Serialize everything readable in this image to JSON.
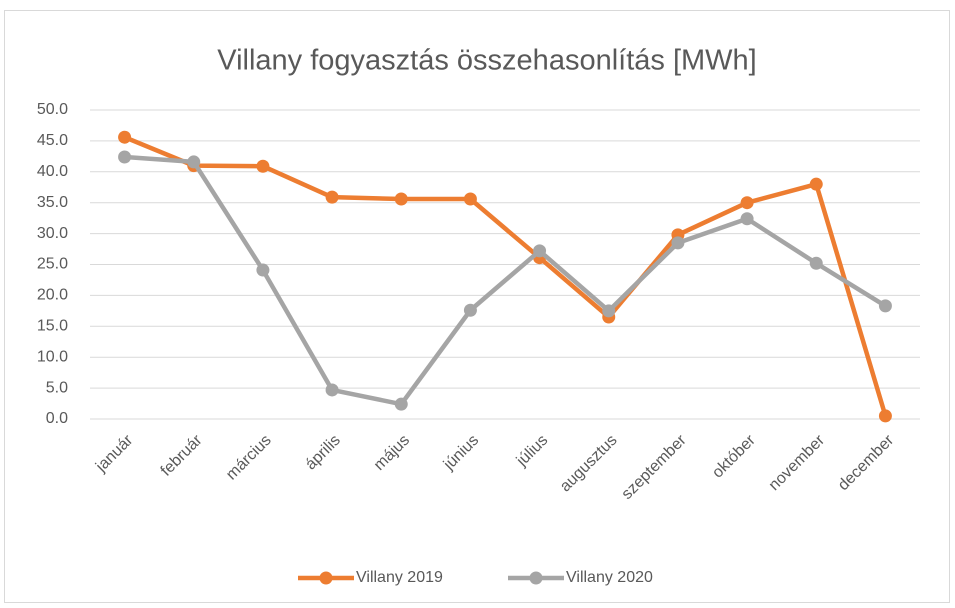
{
  "chart_data": {
    "type": "line",
    "title": "Villany fogyasztás összehasonlítás [MWh]",
    "categories": [
      "január",
      "február",
      "március",
      "április",
      "május",
      "június",
      "július",
      "augusztus",
      "szeptember",
      "október",
      "november",
      "december"
    ],
    "series": [
      {
        "name": "Villany 2019",
        "color": "#ed7d31",
        "values": [
          45.6,
          41.0,
          40.9,
          35.9,
          35.6,
          35.6,
          26.1,
          16.5,
          29.8,
          35.0,
          38.0,
          0.5
        ]
      },
      {
        "name": "Villany 2020",
        "color": "#a5a5a5",
        "values": [
          42.4,
          41.6,
          24.1,
          4.7,
          2.4,
          17.6,
          27.2,
          17.5,
          28.5,
          32.4,
          25.2,
          18.3
        ]
      }
    ],
    "ylim": [
      0,
      50
    ],
    "yticks": [
      {
        "value": 0,
        "label": "0.0"
      },
      {
        "value": 5,
        "label": "5.0"
      },
      {
        "value": 10,
        "label": "10.0"
      },
      {
        "value": 15,
        "label": "15.0"
      },
      {
        "value": 20,
        "label": "20.0"
      },
      {
        "value": 25,
        "label": "25.0"
      },
      {
        "value": 30,
        "label": "30.0"
      },
      {
        "value": 35,
        "label": "35.0"
      },
      {
        "value": 40,
        "label": "40.0"
      },
      {
        "value": 45,
        "label": "45.0"
      },
      {
        "value": 50,
        "label": "50.0"
      }
    ],
    "grid": true,
    "legend": "bottom"
  }
}
